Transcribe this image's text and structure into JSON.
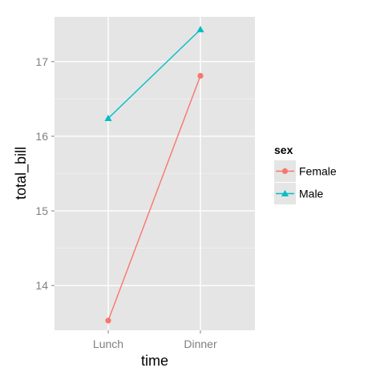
{
  "chart_data": {
    "type": "line",
    "title": "",
    "xlabel": "time",
    "ylabel": "total_bill",
    "categories": [
      "Lunch",
      "Dinner"
    ],
    "ylim": [
      13.4,
      17.6
    ],
    "yticks": [
      14,
      15,
      16,
      17
    ],
    "grid": true,
    "legend": {
      "title": "sex",
      "position": "right"
    },
    "series": [
      {
        "name": "Female",
        "values": [
          13.53,
          16.81
        ],
        "color": "#f8766d",
        "marker": "circle"
      },
      {
        "name": "Male",
        "values": [
          16.24,
          17.43
        ],
        "color": "#00bfc4",
        "marker": "triangle"
      }
    ],
    "colors": {
      "panel_bg": "#e5e5e5",
      "grid": "#ffffff"
    }
  }
}
